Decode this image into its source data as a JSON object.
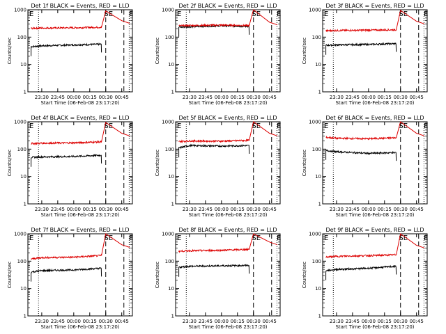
{
  "colors": {
    "events": "#000000",
    "lld": "#dd0000"
  },
  "chart_data": [
    {
      "type": "line",
      "title": "Det 1f BLACK = Events, RED = LLD",
      "xlabel": "Start Time (06-Feb-08 23:17:20)",
      "ylabel": "Counts/sec",
      "yscale": "log",
      "ylim": [
        1,
        1000
      ],
      "xlim": [
        "23:17",
        "00:55"
      ],
      "x_ticks": [
        "23:30",
        "23:45",
        "00:00",
        "00:15",
        "00:30",
        "00:45"
      ],
      "y_ticks": [
        "1",
        "10",
        "100",
        "1000"
      ],
      "flags": [
        "E",
        "SE",
        "E"
      ],
      "series": [
        {
          "name": "Events",
          "color": "#000000",
          "time": [
            "23:20",
            "23:30",
            "00:00",
            "00:26"
          ],
          "values": [
            45,
            48,
            52,
            55
          ]
        },
        {
          "name": "LLD",
          "color": "#dd0000",
          "time": [
            "23:20",
            "23:30",
            "00:00",
            "00:26",
            "00:30",
            "00:45"
          ],
          "values": [
            210,
            215,
            220,
            230,
            900,
            400
          ]
        }
      ]
    },
    {
      "type": "line",
      "title": "Det 2f BLACK = Events, RED = LLD",
      "xlabel": "Start Time (06-Feb-08 23:17:20)",
      "ylabel": "Counts/sec",
      "yscale": "log",
      "ylim": [
        1,
        1000
      ],
      "xlim": [
        "23:17",
        "00:55"
      ],
      "x_ticks": [
        "23:30",
        "23:45",
        "00:00",
        "00:15",
        "00:30",
        "00:45"
      ],
      "y_ticks": [
        "1",
        "10",
        "100",
        "1000"
      ],
      "flags": [
        "E",
        "SE",
        "E"
      ],
      "series": [
        {
          "name": "Events",
          "color": "#000000",
          "time": [
            "23:20",
            "23:30",
            "00:00",
            "00:26"
          ],
          "values": [
            230,
            240,
            260,
            245
          ]
        },
        {
          "name": "LLD",
          "color": "#dd0000",
          "time": [
            "23:20",
            "23:30",
            "00:00",
            "00:26",
            "00:30",
            "00:45"
          ],
          "values": [
            260,
            265,
            275,
            265,
            1000,
            350
          ]
        }
      ]
    },
    {
      "type": "line",
      "title": "Det 3f BLACK = Events, RED = LLD",
      "xlabel": "Start Time (06-Feb-08 23:17:20)",
      "ylabel": "Counts/sec",
      "yscale": "log",
      "ylim": [
        1,
        1000
      ],
      "xlim": [
        "23:17",
        "00:55"
      ],
      "x_ticks": [
        "23:30",
        "23:45",
        "00:00",
        "00:15",
        "00:30",
        "00:45"
      ],
      "y_ticks": [
        "1",
        "10",
        "100",
        "1000"
      ],
      "flags": [
        "E",
        "SE",
        "E"
      ],
      "series": [
        {
          "name": "Events",
          "color": "#000000",
          "time": [
            "23:20",
            "23:30",
            "00:00",
            "00:26"
          ],
          "values": [
            50,
            52,
            54,
            58
          ]
        },
        {
          "name": "LLD",
          "color": "#dd0000",
          "time": [
            "23:20",
            "23:30",
            "00:00",
            "00:26",
            "00:30",
            "00:45"
          ],
          "values": [
            170,
            175,
            180,
            185,
            950,
            380
          ]
        }
      ]
    },
    {
      "type": "line",
      "title": "Det 4f BLACK = Events, RED = LLD",
      "xlabel": "Start Time (06-Feb-08 23:17:20)",
      "ylabel": "Counts/sec",
      "yscale": "log",
      "ylim": [
        1,
        1000
      ],
      "xlim": [
        "23:17",
        "00:55"
      ],
      "x_ticks": [
        "23:30",
        "23:45",
        "00:00",
        "00:15",
        "00:30",
        "00:45"
      ],
      "y_ticks": [
        "1",
        "10",
        "100",
        "1000"
      ],
      "flags": [
        "E",
        "SE",
        "E"
      ],
      "series": [
        {
          "name": "Events",
          "color": "#000000",
          "time": [
            "23:20",
            "23:30",
            "00:00",
            "00:26"
          ],
          "values": [
            50,
            52,
            54,
            60
          ]
        },
        {
          "name": "LLD",
          "color": "#dd0000",
          "time": [
            "23:20",
            "23:30",
            "00:00",
            "00:26",
            "00:30",
            "00:45"
          ],
          "values": [
            160,
            165,
            170,
            185,
            950,
            380
          ]
        }
      ]
    },
    {
      "type": "line",
      "title": "Det 5f BLACK = Events, RED = LLD",
      "xlabel": "Start Time (06-Feb-08 23:17:20)",
      "ylabel": "Counts/sec",
      "yscale": "log",
      "ylim": [
        1,
        1000
      ],
      "xlim": [
        "23:17",
        "00:55"
      ],
      "x_ticks": [
        "23:30",
        "23:45",
        "00:00",
        "00:15",
        "00:30",
        "00:45"
      ],
      "y_ticks": [
        "1",
        "10",
        "100",
        "1000"
      ],
      "flags": [
        "E",
        "SE",
        "E"
      ],
      "series": [
        {
          "name": "Events",
          "color": "#000000",
          "time": [
            "23:20",
            "23:30",
            "00:00",
            "00:26"
          ],
          "values": [
            110,
            135,
            130,
            135
          ]
        },
        {
          "name": "LLD",
          "color": "#dd0000",
          "time": [
            "23:20",
            "23:30",
            "00:00",
            "00:26",
            "00:30",
            "00:45"
          ],
          "values": [
            190,
            200,
            195,
            210,
            1000,
            380
          ]
        }
      ]
    },
    {
      "type": "line",
      "title": "Det 6f BLACK = Events, RED = LLD",
      "xlabel": "Start Time (06-Feb-08 23:17:20)",
      "ylabel": "Counts/sec",
      "yscale": "log",
      "ylim": [
        1,
        1000
      ],
      "xlim": [
        "23:17",
        "00:55"
      ],
      "x_ticks": [
        "23:30",
        "23:45",
        "00:00",
        "00:15",
        "00:30",
        "00:45"
      ],
      "y_ticks": [
        "1",
        "10",
        "100",
        "1000"
      ],
      "flags": [
        "E",
        "SE",
        "E"
      ],
      "series": [
        {
          "name": "Events",
          "color": "#000000",
          "time": [
            "23:20",
            "23:30",
            "00:00",
            "00:26"
          ],
          "values": [
            90,
            80,
            70,
            75
          ]
        },
        {
          "name": "LLD",
          "color": "#dd0000",
          "time": [
            "23:20",
            "23:30",
            "00:00",
            "00:26",
            "00:30",
            "00:45"
          ],
          "values": [
            270,
            250,
            240,
            260,
            1000,
            380
          ]
        }
      ]
    },
    {
      "type": "line",
      "title": "Det 7f BLACK = Events, RED = LLD",
      "xlabel": "Start Time (06-Feb-08 23:17:20)",
      "ylabel": "Counts/sec",
      "yscale": "log",
      "ylim": [
        1,
        1000
      ],
      "xlim": [
        "23:17",
        "00:55"
      ],
      "x_ticks": [
        "23:30",
        "23:45",
        "00:00",
        "00:15",
        "00:30",
        "00:45"
      ],
      "y_ticks": [
        "1",
        "10",
        "100",
        "1000"
      ],
      "flags": [
        "E",
        "SE",
        "E"
      ],
      "series": [
        {
          "name": "Events",
          "color": "#000000",
          "time": [
            "23:20",
            "23:30",
            "00:00",
            "00:26"
          ],
          "values": [
            40,
            45,
            48,
            55
          ]
        },
        {
          "name": "LLD",
          "color": "#dd0000",
          "time": [
            "23:20",
            "23:30",
            "00:00",
            "00:26",
            "00:30",
            "00:45"
          ],
          "values": [
            120,
            135,
            140,
            160,
            1000,
            400
          ]
        }
      ]
    },
    {
      "type": "line",
      "title": "Det 8f BLACK = Events, RED = LLD",
      "xlabel": "Start Time (06-Feb-08 23:17:20)",
      "ylabel": "Counts/sec",
      "yscale": "log",
      "ylim": [
        1,
        1000
      ],
      "xlim": [
        "23:17",
        "00:55"
      ],
      "x_ticks": [
        "23:30",
        "23:45",
        "00:00",
        "00:15",
        "00:30",
        "00:45"
      ],
      "y_ticks": [
        "1",
        "10",
        "100",
        "1000"
      ],
      "flags": [
        "E",
        "SE",
        "E"
      ],
      "series": [
        {
          "name": "Events",
          "color": "#000000",
          "time": [
            "23:20",
            "23:30",
            "00:00",
            "00:26"
          ],
          "values": [
            60,
            65,
            68,
            70
          ]
        },
        {
          "name": "LLD",
          "color": "#dd0000",
          "time": [
            "23:20",
            "23:30",
            "00:00",
            "00:26",
            "00:30",
            "00:45"
          ],
          "values": [
            230,
            240,
            250,
            270,
            1000,
            500
          ]
        }
      ]
    },
    {
      "type": "line",
      "title": "Det 9f BLACK = Events, RED = LLD",
      "xlabel": "Start Time (06-Feb-08 23:17:20)",
      "ylabel": "Counts/sec",
      "yscale": "log",
      "ylim": [
        1,
        1000
      ],
      "xlim": [
        "23:17",
        "00:55"
      ],
      "x_ticks": [
        "23:30",
        "23:45",
        "00:00",
        "00:15",
        "00:30",
        "00:45"
      ],
      "y_ticks": [
        "1",
        "10",
        "100",
        "1000"
      ],
      "flags": [
        "E",
        "SE",
        "E"
      ],
      "series": [
        {
          "name": "Events",
          "color": "#000000",
          "time": [
            "23:20",
            "23:30",
            "00:00",
            "00:26"
          ],
          "values": [
            45,
            50,
            55,
            65
          ]
        },
        {
          "name": "LLD",
          "color": "#dd0000",
          "time": [
            "23:20",
            "23:30",
            "00:00",
            "00:26",
            "00:30",
            "00:45"
          ],
          "values": [
            140,
            150,
            160,
            170,
            1000,
            380
          ]
        }
      ]
    }
  ]
}
